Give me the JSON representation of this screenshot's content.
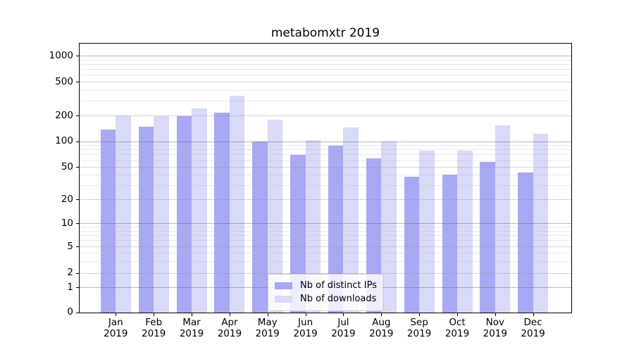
{
  "title": "metabomxtr 2019",
  "colors": {
    "ips": "#a8a8f4",
    "downloads": "#d9d9f8"
  },
  "legend": {
    "items": [
      {
        "label": "Nb of distinct IPs",
        "series": "ips"
      },
      {
        "label": "Nb of downloads",
        "series": "downloads"
      }
    ]
  },
  "x_axis": {
    "months": [
      "Jan",
      "Feb",
      "Mar",
      "Apr",
      "May",
      "Jun",
      "Jul",
      "Aug",
      "Sep",
      "Oct",
      "Nov",
      "Dec"
    ],
    "year": "2019"
  },
  "y_axis": {
    "tick_values": [
      0,
      1,
      2,
      5,
      10,
      20,
      50,
      100,
      200,
      500,
      1000
    ]
  },
  "chart_data": {
    "type": "bar",
    "title": "metabomxtr 2019",
    "categories": [
      "Jan 2019",
      "Feb 2019",
      "Mar 2019",
      "Apr 2019",
      "May 2019",
      "Jun 2019",
      "Jul 2019",
      "Aug 2019",
      "Sep 2019",
      "Oct 2019",
      "Nov 2019",
      "Dec 2019"
    ],
    "series": [
      {
        "name": "Nb of distinct IPs",
        "color_key": "ips",
        "values": [
          140,
          150,
          200,
          220,
          100,
          70,
          89,
          63,
          38,
          41,
          58,
          43
        ]
      },
      {
        "name": "Nb of downloads",
        "color_key": "downloads",
        "values": [
          205,
          198,
          248,
          345,
          180,
          105,
          146,
          100,
          78,
          78,
          157,
          125
        ]
      }
    ],
    "yscale": "symlog",
    "yticks": [
      0,
      1,
      2,
      5,
      10,
      20,
      50,
      100,
      200,
      500,
      1000
    ],
    "ylim": [
      0,
      1400
    ],
    "grid": "horizontal major and minor gridlines",
    "legend_position": "lower center"
  }
}
